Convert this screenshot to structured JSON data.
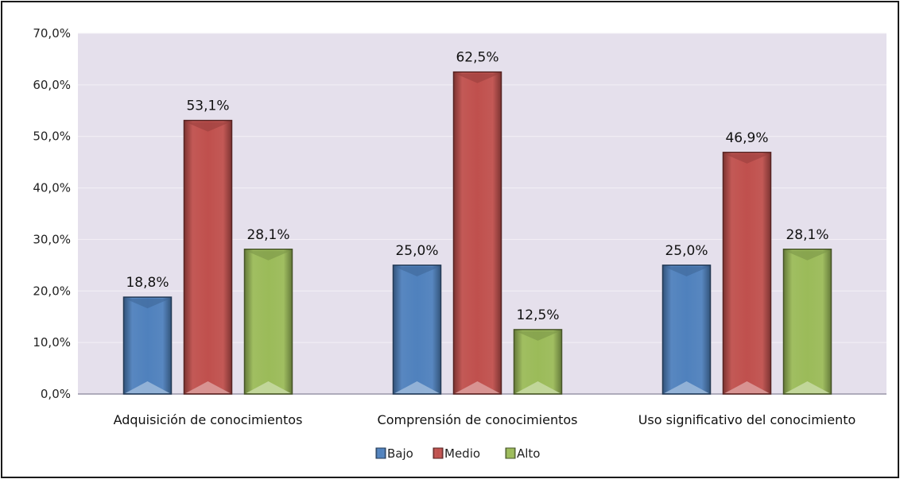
{
  "chart_data": {
    "type": "bar",
    "title": "",
    "xlabel": "",
    "ylabel": "",
    "ylim": [
      0,
      70
    ],
    "yticks": [
      "0,0%",
      "10,0%",
      "20,0%",
      "30,0%",
      "40,0%",
      "50,0%",
      "60,0%",
      "70,0%"
    ],
    "grid": true,
    "legend_position": "bottom",
    "categories": [
      "Adquisición de conocimientos",
      "Comprensión de conocimientos",
      "Uso significativo del conocimiento"
    ],
    "series": [
      {
        "name": "Bajo",
        "color": "#4f81bd",
        "values": [
          18.8,
          25.0,
          25.0
        ],
        "labels": [
          "18,8%",
          "25,0%",
          "25,0%"
        ]
      },
      {
        "name": "Medio",
        "color": "#c0504d",
        "values": [
          53.1,
          62.5,
          46.9
        ],
        "labels": [
          "53,1%",
          "62,5%",
          "46,9%"
        ]
      },
      {
        "name": "Alto",
        "color": "#9bbb59",
        "values": [
          28.1,
          12.5,
          28.1
        ],
        "labels": [
          "28,1%",
          "12,5%",
          "28,1%"
        ]
      }
    ],
    "plot_background": "#e5e0ec"
  }
}
